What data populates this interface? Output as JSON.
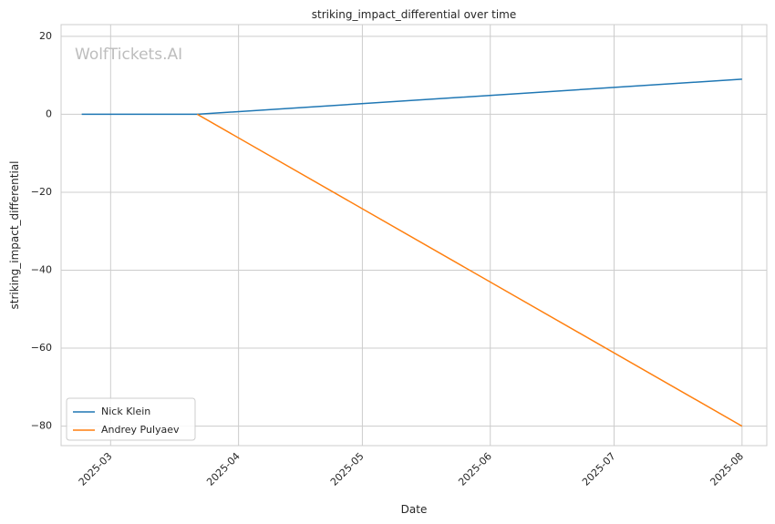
{
  "chart_data": {
    "type": "line",
    "title": "striking_impact_differential over time",
    "xlabel": "Date",
    "ylabel": "striking_impact_differential",
    "watermark": "WolfTickets.AI",
    "x_ticks": [
      "2025-03",
      "2025-04",
      "2025-05",
      "2025-06",
      "2025-07",
      "2025-08"
    ],
    "y_ticks": [
      20,
      0,
      -20,
      -40,
      -60,
      -80
    ],
    "y_tick_labels": [
      "20",
      "0",
      "−20",
      "−40",
      "−60",
      "−80"
    ],
    "xlim": [
      "2025-02-17",
      "2025-08-07"
    ],
    "ylim": [
      -85,
      23
    ],
    "grid": true,
    "legend_position": "bottom-left",
    "series": [
      {
        "name": "Nick Klein",
        "color": "#1f77b4",
        "x": [
          "2025-02-22",
          "2025-03-22",
          "2025-08-01"
        ],
        "y": [
          0,
          0,
          9
        ]
      },
      {
        "name": "Andrey Pulyaev",
        "color": "#ff7f0e",
        "x": [
          "2025-03-22",
          "2025-08-01"
        ],
        "y": [
          0,
          -80
        ]
      }
    ]
  }
}
